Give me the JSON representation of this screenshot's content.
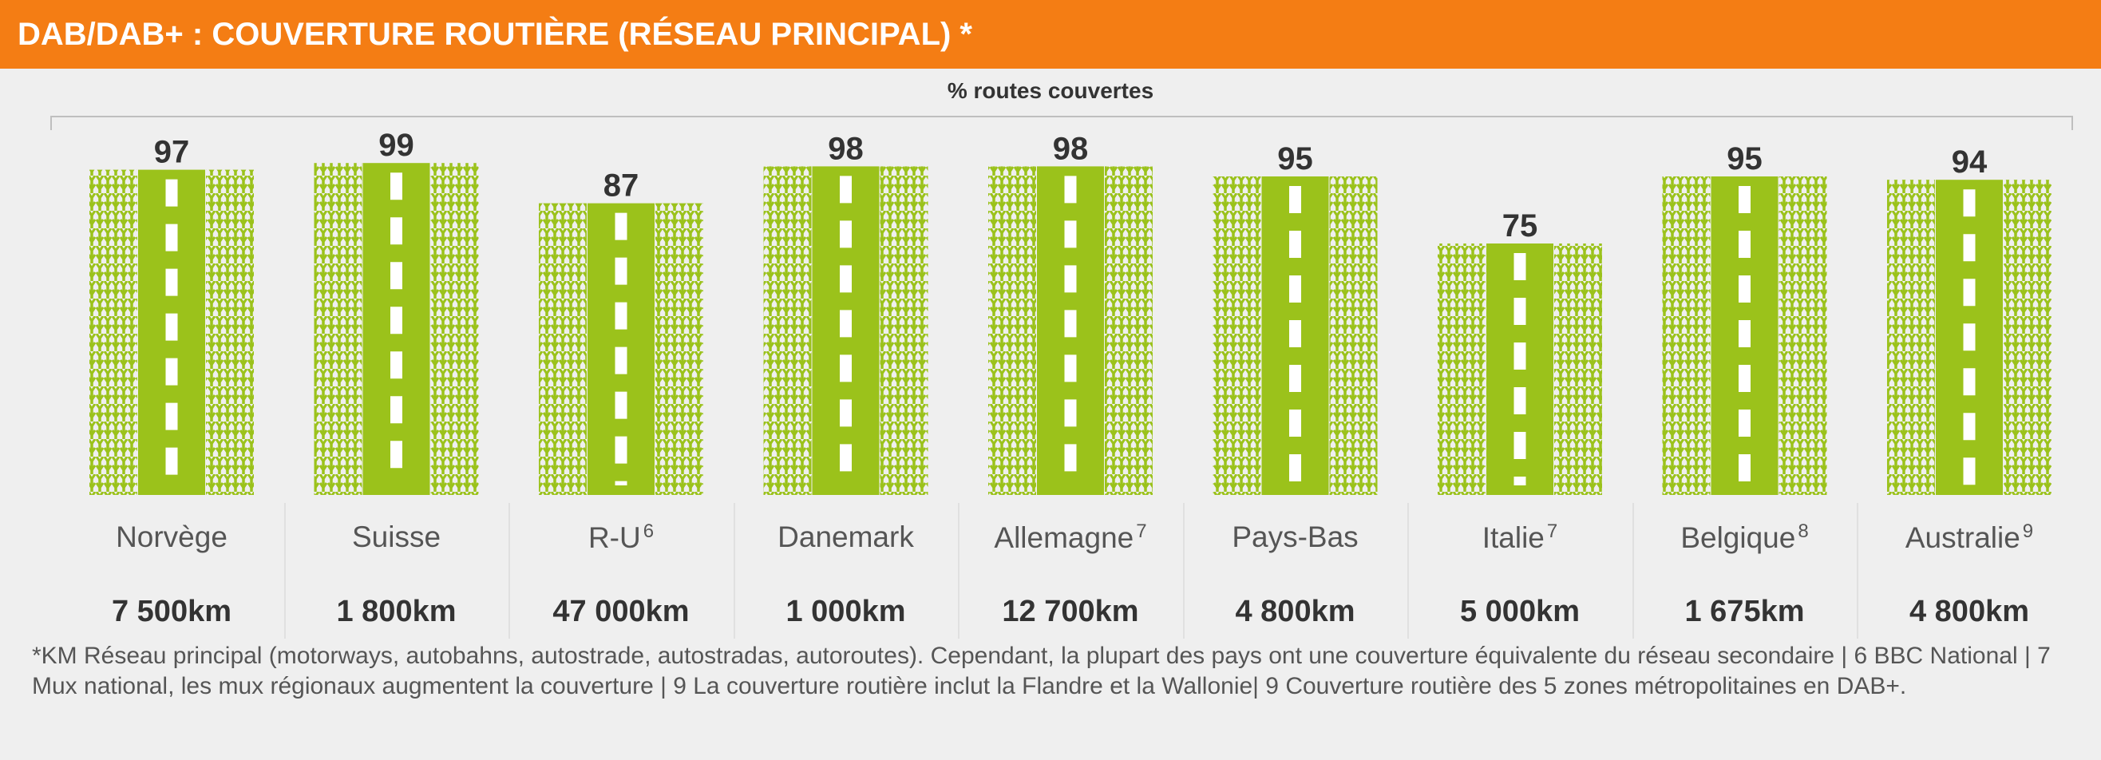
{
  "header": {
    "title": "DAB/DAB+ : COUVERTURE ROUTIÈRE (RÉSEAU PRINCIPAL) *"
  },
  "colors": {
    "header_bg": "#f47d14",
    "road_green": "#9bc21b",
    "background": "#efefef"
  },
  "chart_data": {
    "type": "bar",
    "title": "DAB/DAB+ : COUVERTURE ROUTIÈRE (RÉSEAU PRINCIPAL) *",
    "subtitle": "% routes couvertes",
    "ylabel": "% routes couvertes",
    "ylim": [
      0,
      100
    ],
    "categories": [
      {
        "name": "Norvège",
        "sup": ""
      },
      {
        "name": "Suisse",
        "sup": ""
      },
      {
        "name": "R-U",
        "sup": "6"
      },
      {
        "name": "Danemark",
        "sup": ""
      },
      {
        "name": "Allemagne",
        "sup": "7"
      },
      {
        "name": "Pays-Bas",
        "sup": ""
      },
      {
        "name": "Italie",
        "sup": "7"
      },
      {
        "name": "Belgique",
        "sup": "8"
      },
      {
        "name": "Australie",
        "sup": "9"
      }
    ],
    "values": [
      97,
      99,
      87,
      98,
      98,
      95,
      75,
      95,
      94
    ],
    "km": [
      "7 500km",
      "1 800km",
      "47 000km",
      "1 000km",
      "12 700km",
      "4 800km",
      "5 000km",
      "1 675km",
      "4 800km"
    ]
  },
  "footnote": "*KM Réseau principal (motorways, autobahns, autostrade, autostradas, autoroutes). Cependant, la plupart des pays ont une couverture équivalente du réseau secondaire |  6 BBC National   |   7 Mux  national, les mux régionaux augmentent la couverture | 9 La couverture routière inclut la Flandre et la Wallonie|  9 Couverture routière des 5 zones métropolitaines en DAB+."
}
